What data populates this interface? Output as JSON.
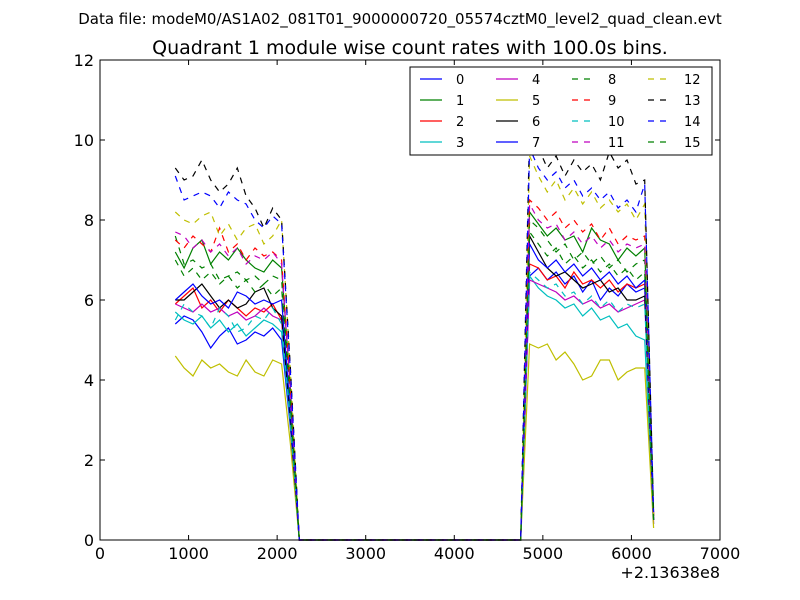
{
  "suptitle": "Data file: modeM0/AS1A02_081T01_9000000720_05574cztM0_level2_quad_clean.evt",
  "chart_data": {
    "type": "line",
    "title": "Quadrant 1 module wise count rates with 100.0s bins.",
    "xlabel": "",
    "ylabel": "",
    "x_offset_label": "+2.13638e8",
    "xlim": [
      0,
      7000
    ],
    "ylim": [
      0,
      12
    ],
    "x_ticks": [
      0,
      1000,
      2000,
      3000,
      4000,
      5000,
      6000,
      7000
    ],
    "y_ticks": [
      0,
      2,
      4,
      6,
      8,
      10,
      12
    ],
    "grid": false,
    "legend_position": "top-right",
    "legend_columns": 4,
    "x": [
      850,
      950,
      1050,
      1150,
      1250,
      1350,
      1450,
      1550,
      1650,
      1750,
      1850,
      1950,
      2050,
      2150,
      2250,
      2350,
      2450,
      2550,
      2650,
      2750,
      2850,
      2950,
      3050,
      3150,
      3250,
      3350,
      3450,
      3550,
      3650,
      3750,
      3850,
      3950,
      4050,
      4150,
      4250,
      4350,
      4450,
      4550,
      4650,
      4750,
      4850,
      4950,
      5050,
      5150,
      5250,
      5350,
      5450,
      5550,
      5650,
      5750,
      5850,
      5950,
      6050,
      6150,
      6250
    ],
    "series": [
      {
        "name": "0",
        "color": "#0000ff",
        "dash": "solid",
        "values": [
          5.4,
          5.6,
          5.5,
          5.2,
          4.8,
          5.1,
          5.3,
          4.9,
          5.0,
          5.2,
          5.1,
          5.3,
          5.0,
          2.8,
          0,
          0,
          0,
          0,
          0,
          0,
          0,
          0,
          0,
          0,
          0,
          0,
          0,
          0,
          0,
          0,
          0,
          0,
          0,
          0,
          0,
          0,
          0,
          0,
          0,
          0,
          6.6,
          6.8,
          6.5,
          6.7,
          6.4,
          6.6,
          6.2,
          6.5,
          6.0,
          6.3,
          6.1,
          6.4,
          6.2,
          6.3,
          0.5
        ]
      },
      {
        "name": "1",
        "color": "#008000",
        "dash": "solid",
        "values": [
          7.2,
          6.8,
          7.3,
          7.5,
          6.9,
          7.2,
          7.0,
          7.3,
          7.0,
          6.8,
          6.7,
          7.0,
          6.8,
          3.8,
          0,
          0,
          0,
          0,
          0,
          0,
          0,
          0,
          0,
          0,
          0,
          0,
          0,
          0,
          0,
          0,
          0,
          0,
          0,
          0,
          0,
          0,
          0,
          0,
          0,
          0,
          8.2,
          7.9,
          7.6,
          7.8,
          7.5,
          7.6,
          7.2,
          7.8,
          7.5,
          7.4,
          7.0,
          7.3,
          7.1,
          7.3,
          0.6
        ]
      },
      {
        "name": "2",
        "color": "#ff0000",
        "dash": "solid",
        "values": [
          5.9,
          6.1,
          6.3,
          5.8,
          6.0,
          5.7,
          6.0,
          5.8,
          5.6,
          5.8,
          5.7,
          5.9,
          5.5,
          3.0,
          0,
          0,
          0,
          0,
          0,
          0,
          0,
          0,
          0,
          0,
          0,
          0,
          0,
          0,
          0,
          0,
          0,
          0,
          0,
          0,
          0,
          0,
          0,
          0,
          0,
          0,
          6.9,
          6.8,
          6.5,
          6.6,
          6.3,
          6.7,
          6.4,
          6.5,
          6.3,
          6.5,
          6.2,
          6.4,
          6.3,
          6.4,
          0.5
        ]
      },
      {
        "name": "3",
        "color": "#00bfbf",
        "dash": "solid",
        "values": [
          5.7,
          5.5,
          5.4,
          5.6,
          5.3,
          5.5,
          5.2,
          5.4,
          5.1,
          5.3,
          5.5,
          5.4,
          5.2,
          2.9,
          0,
          0,
          0,
          0,
          0,
          0,
          0,
          0,
          0,
          0,
          0,
          0,
          0,
          0,
          0,
          0,
          0,
          0,
          0,
          0,
          0,
          0,
          0,
          0,
          0,
          0,
          6.6,
          6.3,
          6.1,
          6.0,
          5.8,
          5.9,
          5.6,
          5.8,
          5.5,
          5.6,
          5.3,
          5.4,
          5.1,
          5.0,
          0.4
        ]
      },
      {
        "name": "4",
        "color": "#bf00bf",
        "dash": "solid",
        "values": [
          5.9,
          5.8,
          5.7,
          5.9,
          5.7,
          5.8,
          5.6,
          5.7,
          5.5,
          5.6,
          5.8,
          5.6,
          5.5,
          3.0,
          0,
          0,
          0,
          0,
          0,
          0,
          0,
          0,
          0,
          0,
          0,
          0,
          0,
          0,
          0,
          0,
          0,
          0,
          0,
          0,
          0,
          0,
          0,
          0,
          0,
          0,
          6.5,
          6.4,
          6.3,
          6.2,
          6.0,
          6.1,
          5.9,
          6.0,
          5.8,
          5.9,
          5.7,
          5.8,
          5.9,
          6.0,
          0.4
        ]
      },
      {
        "name": "5",
        "color": "#bfbf00",
        "dash": "solid",
        "values": [
          4.6,
          4.3,
          4.1,
          4.5,
          4.3,
          4.4,
          4.2,
          4.1,
          4.5,
          4.2,
          4.1,
          4.5,
          4.4,
          2.4,
          0,
          0,
          0,
          0,
          0,
          0,
          0,
          0,
          0,
          0,
          0,
          0,
          0,
          0,
          0,
          0,
          0,
          0,
          0,
          0,
          0,
          0,
          0,
          0,
          0,
          0,
          4.9,
          4.8,
          4.9,
          4.5,
          4.7,
          4.4,
          4.0,
          4.1,
          4.5,
          4.5,
          4.0,
          4.2,
          4.3,
          4.3,
          0.3
        ]
      },
      {
        "name": "6",
        "color": "#000000",
        "dash": "solid",
        "values": [
          6.0,
          6.0,
          6.2,
          6.4,
          6.1,
          5.8,
          6.0,
          5.8,
          5.9,
          6.2,
          6.3,
          5.8,
          5.6,
          3.0,
          0,
          0,
          0,
          0,
          0,
          0,
          0,
          0,
          0,
          0,
          0,
          0,
          0,
          0,
          0,
          0,
          0,
          0,
          0,
          0,
          0,
          0,
          0,
          0,
          0,
          0,
          7.6,
          7.2,
          6.8,
          6.6,
          6.7,
          6.5,
          6.3,
          6.4,
          6.5,
          6.2,
          6.3,
          6.0,
          6.0,
          6.1,
          0.5
        ]
      },
      {
        "name": "7",
        "color": "#0000ff",
        "dash": "solid",
        "values": [
          6.0,
          6.2,
          6.4,
          6.1,
          5.9,
          6.0,
          5.8,
          6.2,
          6.1,
          5.9,
          6.0,
          5.9,
          6.0,
          3.2,
          0,
          0,
          0,
          0,
          0,
          0,
          0,
          0,
          0,
          0,
          0,
          0,
          0,
          0,
          0,
          0,
          0,
          0,
          0,
          0,
          0,
          0,
          0,
          0,
          0,
          0,
          7.4,
          7.0,
          6.8,
          7.0,
          6.7,
          6.9,
          6.6,
          6.8,
          6.5,
          6.7,
          6.4,
          6.6,
          6.3,
          6.5,
          0.5
        ]
      },
      {
        "name": "8",
        "color": "#008000",
        "dash": "dashed",
        "values": [
          7.6,
          6.9,
          7.0,
          6.8,
          6.9,
          6.5,
          6.6,
          6.7,
          6.5,
          6.6,
          6.4,
          6.6,
          6.5,
          3.6,
          0,
          0,
          0,
          0,
          0,
          0,
          0,
          0,
          0,
          0,
          0,
          0,
          0,
          0,
          0,
          0,
          0,
          0,
          0,
          0,
          0,
          0,
          0,
          0,
          0,
          0,
          8.0,
          7.8,
          7.5,
          7.2,
          7.4,
          7.0,
          7.2,
          6.9,
          7.1,
          6.8,
          7.0,
          6.7,
          6.9,
          7.0,
          0.6
        ]
      },
      {
        "name": "9",
        "color": "#ff0000",
        "dash": "dashed",
        "values": [
          7.5,
          7.3,
          7.6,
          7.4,
          7.2,
          7.8,
          7.2,
          7.4,
          7.0,
          7.3,
          7.1,
          7.2,
          7.0,
          3.8,
          0,
          0,
          0,
          0,
          0,
          0,
          0,
          0,
          0,
          0,
          0,
          0,
          0,
          0,
          0,
          0,
          0,
          0,
          0,
          0,
          0,
          0,
          0,
          0,
          0,
          0,
          8.5,
          8.3,
          8.0,
          8.2,
          7.8,
          8.0,
          7.7,
          7.9,
          7.5,
          7.8,
          7.4,
          7.6,
          7.5,
          7.6,
          0.6
        ]
      },
      {
        "name": "10",
        "color": "#00bfbf",
        "dash": "dashed",
        "values": [
          5.5,
          5.9,
          5.7,
          5.6,
          5.3,
          5.8,
          5.6,
          5.2,
          5.3,
          5.6,
          5.5,
          5.8,
          5.4,
          3.0,
          0,
          0,
          0,
          0,
          0,
          0,
          0,
          0,
          0,
          0,
          0,
          0,
          0,
          0,
          0,
          0,
          0,
          0,
          0,
          0,
          0,
          0,
          0,
          0,
          0,
          0,
          6.7,
          6.5,
          6.3,
          6.4,
          6.1,
          6.2,
          5.9,
          6.1,
          5.8,
          6.0,
          5.7,
          5.9,
          5.8,
          5.9,
          0.5
        ]
      },
      {
        "name": "11",
        "color": "#bf00bf",
        "dash": "dashed",
        "values": [
          7.7,
          7.6,
          7.3,
          7.5,
          7.2,
          7.4,
          7.1,
          7.3,
          6.9,
          7.1,
          7.0,
          7.2,
          6.9,
          3.7,
          0,
          0,
          0,
          0,
          0,
          0,
          0,
          0,
          0,
          0,
          0,
          0,
          0,
          0,
          0,
          0,
          0,
          0,
          0,
          0,
          0,
          0,
          0,
          0,
          0,
          0,
          8.4,
          8.0,
          7.8,
          7.9,
          7.5,
          7.7,
          7.4,
          7.6,
          7.3,
          7.5,
          7.2,
          7.4,
          7.3,
          7.4,
          0.6
        ]
      },
      {
        "name": "12",
        "color": "#bfbf00",
        "dash": "dashed",
        "values": [
          8.2,
          8.0,
          7.9,
          8.1,
          8.2,
          7.6,
          7.9,
          7.5,
          7.8,
          7.9,
          7.4,
          7.6,
          8.0,
          4.2,
          0,
          0,
          0,
          0,
          0,
          0,
          0,
          0,
          0,
          0,
          0,
          0,
          0,
          0,
          0,
          0,
          0,
          0,
          0,
          0,
          0,
          0,
          0,
          0,
          0,
          0,
          9.6,
          9.1,
          8.7,
          9.0,
          8.5,
          8.8,
          8.4,
          8.7,
          8.3,
          8.5,
          8.2,
          8.4,
          8.0,
          8.4,
          0.6
        ]
      },
      {
        "name": "13",
        "color": "#000000",
        "dash": "dashed",
        "values": [
          9.3,
          9.0,
          9.1,
          9.5,
          9.0,
          8.7,
          8.9,
          9.3,
          8.6,
          8.3,
          7.8,
          8.3,
          8.0,
          4.3,
          0,
          0,
          0,
          0,
          0,
          0,
          0,
          0,
          0,
          0,
          0,
          0,
          0,
          0,
          0,
          0,
          0,
          0,
          0,
          0,
          0,
          0,
          0,
          0,
          0,
          0,
          10.3,
          9.8,
          9.3,
          9.6,
          9.1,
          9.5,
          9.2,
          9.4,
          9.0,
          9.7,
          9.3,
          9.5,
          8.9,
          9.0,
          0.7
        ]
      },
      {
        "name": "14",
        "color": "#0000ff",
        "dash": "dashed",
        "values": [
          9.1,
          8.5,
          8.6,
          8.7,
          8.6,
          8.3,
          8.7,
          8.5,
          8.4,
          8.0,
          7.8,
          8.1,
          7.9,
          4.2,
          0,
          0,
          0,
          0,
          0,
          0,
          0,
          0,
          0,
          0,
          0,
          0,
          0,
          0,
          0,
          0,
          0,
          0,
          0,
          0,
          0,
          0,
          0,
          0,
          0,
          0,
          9.8,
          9.3,
          9.0,
          9.2,
          8.8,
          9.0,
          8.6,
          8.8,
          8.5,
          8.7,
          8.3,
          8.5,
          8.2,
          8.9,
          0.7
        ]
      },
      {
        "name": "15",
        "color": "#008000",
        "dash": "dashed",
        "values": [
          7.0,
          6.6,
          6.8,
          6.5,
          6.7,
          6.4,
          6.6,
          6.3,
          6.5,
          6.2,
          6.4,
          6.1,
          6.3,
          3.4,
          0,
          0,
          0,
          0,
          0,
          0,
          0,
          0,
          0,
          0,
          0,
          0,
          0,
          0,
          0,
          0,
          0,
          0,
          0,
          0,
          0,
          0,
          0,
          0,
          0,
          0,
          7.7,
          7.4,
          7.1,
          7.3,
          6.9,
          7.1,
          6.8,
          7.0,
          6.7,
          6.9,
          6.6,
          6.8,
          6.5,
          6.7,
          0.5
        ]
      }
    ]
  }
}
